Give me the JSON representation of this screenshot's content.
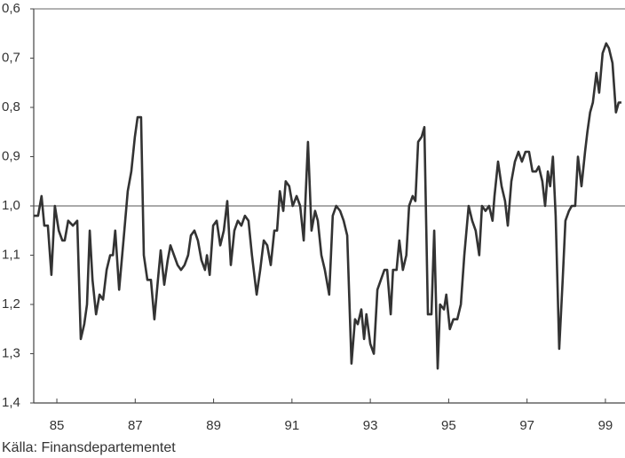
{
  "chart_data": {
    "type": "line",
    "source": "Källa: Finansdepartementet",
    "xlim": [
      84.41,
      99.5
    ],
    "xticks": [
      85,
      87,
      89,
      91,
      93,
      95,
      97,
      99
    ],
    "ylim": [
      1.4,
      0.6
    ],
    "yticks": [
      {
        "value": 0.6,
        "label": "0,6"
      },
      {
        "value": 0.7,
        "label": "0,7"
      },
      {
        "value": 0.8,
        "label": "0,8"
      },
      {
        "value": 0.9,
        "label": "0,9"
      },
      {
        "value": 1.0,
        "label": "1,0"
      },
      {
        "value": 1.1,
        "label": "1,1"
      },
      {
        "value": 1.2,
        "label": "1,2"
      },
      {
        "value": 1.3,
        "label": "1,3"
      },
      {
        "value": 1.4,
        "label": "1,4"
      }
    ],
    "reference_line": 1.0,
    "x": [
      84.41,
      84.52,
      84.61,
      84.68,
      84.77,
      84.86,
      84.95,
      85.05,
      85.14,
      85.2,
      85.29,
      85.41,
      85.52,
      85.61,
      85.7,
      85.77,
      85.84,
      85.91,
      86.0,
      86.09,
      86.18,
      86.27,
      86.36,
      86.43,
      86.49,
      86.59,
      86.7,
      86.81,
      86.9,
      86.99,
      87.06,
      87.15,
      87.22,
      87.31,
      87.4,
      87.49,
      87.58,
      87.65,
      87.74,
      87.83,
      87.9,
      87.99,
      88.08,
      88.17,
      88.26,
      88.35,
      88.42,
      88.51,
      88.6,
      88.69,
      88.78,
      88.83,
      88.9,
      88.99,
      89.08,
      89.17,
      89.26,
      89.35,
      89.44,
      89.53,
      89.62,
      89.71,
      89.8,
      89.89,
      89.98,
      90.1,
      90.19,
      90.28,
      90.37,
      90.46,
      90.55,
      90.62,
      90.69,
      90.78,
      90.84,
      90.93,
      91.02,
      91.12,
      91.21,
      91.3,
      91.41,
      91.5,
      91.59,
      91.66,
      91.75,
      91.84,
      91.95,
      92.04,
      92.13,
      92.23,
      92.32,
      92.41,
      92.52,
      92.61,
      92.68,
      92.77,
      92.84,
      92.9,
      93.0,
      93.09,
      93.18,
      93.27,
      93.36,
      93.43,
      93.52,
      93.58,
      93.67,
      93.74,
      93.83,
      93.92,
      93.99,
      94.08,
      94.15,
      94.22,
      94.31,
      94.38,
      94.47,
      94.56,
      94.63,
      94.72,
      94.78,
      94.88,
      94.94,
      95.03,
      95.12,
      95.22,
      95.31,
      95.4,
      95.51,
      95.6,
      95.69,
      95.78,
      95.85,
      95.94,
      96.03,
      96.12,
      96.17,
      96.26,
      96.35,
      96.44,
      96.51,
      96.6,
      96.69,
      96.78,
      96.87,
      96.96,
      97.05,
      97.14,
      97.23,
      97.3,
      97.39,
      97.46,
      97.53,
      97.59,
      97.66,
      97.73,
      97.82,
      97.91,
      97.98,
      98.07,
      98.14,
      98.23,
      98.3,
      98.39,
      98.48,
      98.54,
      98.61,
      98.68,
      98.77,
      98.84,
      98.93,
      99.02,
      99.09,
      99.18,
      99.27,
      99.34,
      99.41
    ],
    "series": [
      {
        "color": "#333333",
        "values": [
          1.02,
          1.02,
          0.98,
          1.04,
          1.04,
          1.14,
          1.0,
          1.05,
          1.07,
          1.07,
          1.03,
          1.04,
          1.03,
          1.27,
          1.24,
          1.2,
          1.05,
          1.15,
          1.22,
          1.18,
          1.19,
          1.13,
          1.1,
          1.1,
          1.05,
          1.17,
          1.07,
          0.97,
          0.93,
          0.86,
          0.82,
          0.82,
          1.1,
          1.15,
          1.15,
          1.23,
          1.15,
          1.09,
          1.16,
          1.11,
          1.08,
          1.1,
          1.12,
          1.13,
          1.12,
          1.1,
          1.06,
          1.05,
          1.07,
          1.11,
          1.13,
          1.1,
          1.14,
          1.04,
          1.03,
          1.08,
          1.05,
          0.99,
          1.12,
          1.05,
          1.03,
          1.04,
          1.02,
          1.03,
          1.1,
          1.18,
          1.13,
          1.07,
          1.08,
          1.12,
          1.05,
          1.05,
          0.97,
          1.01,
          0.95,
          0.96,
          1.0,
          0.98,
          1.0,
          1.07,
          0.87,
          1.05,
          1.01,
          1.03,
          1.1,
          1.13,
          1.18,
          1.02,
          1.0,
          1.01,
          1.03,
          1.06,
          1.32,
          1.23,
          1.24,
          1.21,
          1.27,
          1.22,
          1.28,
          1.3,
          1.17,
          1.15,
          1.13,
          1.13,
          1.22,
          1.13,
          1.13,
          1.07,
          1.13,
          1.1,
          1.0,
          0.98,
          0.99,
          0.87,
          0.86,
          0.84,
          1.22,
          1.22,
          1.05,
          1.33,
          1.2,
          1.21,
          1.18,
          1.25,
          1.23,
          1.23,
          1.2,
          1.1,
          1.0,
          1.03,
          1.05,
          1.1,
          1.0,
          1.01,
          1.0,
          1.03,
          0.98,
          0.91,
          0.96,
          0.99,
          1.04,
          0.95,
          0.91,
          0.89,
          0.91,
          0.89,
          0.89,
          0.93,
          0.93,
          0.92,
          0.95,
          1.0,
          0.93,
          0.96,
          0.9,
          1.02,
          1.29,
          1.15,
          1.03,
          1.01,
          1.0,
          1.0,
          0.9,
          0.96,
          0.89,
          0.85,
          0.81,
          0.79,
          0.73,
          0.77,
          0.69,
          0.67,
          0.68,
          0.71,
          0.81,
          0.79,
          0.79
        ]
      }
    ]
  }
}
